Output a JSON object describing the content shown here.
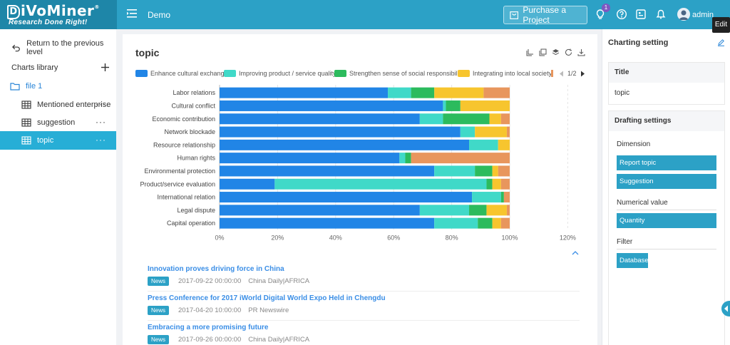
{
  "header": {
    "logo_text": "iVoMiner",
    "logo_letter": "D",
    "logo_tagline": "Research Done Right!",
    "project_name": "Demo",
    "purchase_label": "Purchase a Project",
    "notification_count": "1",
    "user_name": "admin",
    "edit_tooltip": "Edit",
    "colors": {
      "bar": "#2ca1c6",
      "logo_bg": "#1e86a8",
      "accent": "#27aed6"
    }
  },
  "sidebar": {
    "back_label": "Return to the previous level",
    "library_label": "Charts library",
    "items": [
      {
        "label": "file 1",
        "icon": "folder-icon"
      },
      {
        "label": "Mentioned enterprise",
        "icon": "table-icon"
      },
      {
        "label": "suggestion",
        "icon": "table-icon"
      },
      {
        "label": "topic",
        "icon": "table-icon"
      }
    ]
  },
  "main": {
    "title": "topic",
    "legend_page": "1/2",
    "news": [
      {
        "title": "Innovation proves driving force in China",
        "tag": "News",
        "date": "2017-09-22 00:00:00",
        "source": "China Daily|AFRICA"
      },
      {
        "title": "Press Conference for 2017 iWorld Digital World Expo Held in Chengdu",
        "tag": "News",
        "date": "2017-04-20 10:00:00",
        "source": "PR Newswire"
      },
      {
        "title": "Embracing a more promising future",
        "tag": "News",
        "date": "2017-09-26 00:00:00",
        "source": "China Daily|AFRICA"
      }
    ]
  },
  "chart_data": {
    "type": "bar",
    "orientation": "horizontal",
    "stacked": "percent",
    "categories": [
      "Labor relations",
      "Cultural conflict",
      "Economic contribution",
      "Network blockade",
      "Resource relationship",
      "Human rights",
      "Environmental protection",
      "Product/service evaluation",
      "International relation",
      "Legal dispute",
      "Capital operation"
    ],
    "series": [
      {
        "name": "Enhance cultural exchange",
        "color": "#2185e6",
        "values": [
          58,
          77,
          69,
          83,
          86,
          62,
          74,
          19,
          87,
          69,
          74
        ]
      },
      {
        "name": "Improving product / service quality",
        "color": "#40d9c8",
        "values": [
          8,
          1,
          8,
          5,
          10,
          2,
          14,
          73,
          10,
          17,
          15
        ]
      },
      {
        "name": "Strengthen sense of social responsibility.",
        "color": "#2cbb5d",
        "values": [
          8,
          5,
          16,
          0,
          0,
          2,
          6,
          2,
          1,
          6,
          5
        ]
      },
      {
        "name": "Integrating into local society",
        "color": "#f7c52e",
        "values": [
          17,
          17,
          4,
          11,
          4,
          0,
          2,
          3,
          0,
          7,
          3
        ]
      },
      {
        "name": "",
        "color": "#e8965d",
        "values": [
          9,
          0,
          3,
          1,
          0,
          34,
          4,
          3,
          2,
          1,
          3
        ]
      }
    ],
    "xaxis_ticks": [
      "0%",
      "20%",
      "40%",
      "60%",
      "80%",
      "100%",
      "120%"
    ],
    "xlim": [
      0,
      120
    ],
    "grid": true,
    "legend_position": "top"
  },
  "right_panel": {
    "title": "Charting setting",
    "title_section": {
      "header": "Title",
      "value": "topic"
    },
    "drafting": {
      "header": "Drafting settings",
      "dimension_label": "Dimension",
      "dimensions": [
        "Report topic",
        "Suggestion"
      ],
      "numerical_label": "Numerical value",
      "numerical": [
        "Quantity"
      ],
      "filter_label": "Filter",
      "filters": [
        "Database"
      ]
    }
  }
}
